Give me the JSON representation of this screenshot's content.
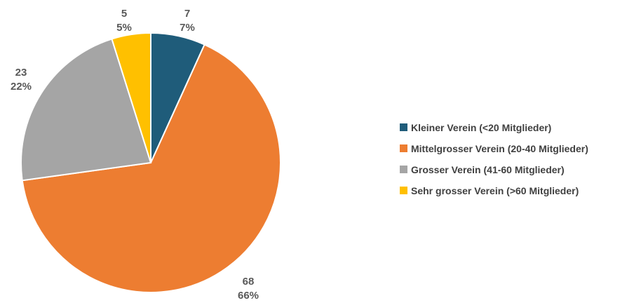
{
  "chart_data": {
    "type": "pie",
    "title": "",
    "start_angle_deg": 0,
    "direction": "clockwise",
    "legend_position": "right",
    "slices": [
      {
        "label": "Kleiner Verein (<20 Mitglieder)",
        "value": 7,
        "percent_label": "7%",
        "color": "#1F5C7A"
      },
      {
        "label": "Mittelgrosser Verein (20-40 Mitglieder)",
        "value": 68,
        "percent_label": "66%",
        "color": "#ED7D31"
      },
      {
        "label": "Grosser Verein (41-60 Mitglieder)",
        "value": 23,
        "percent_label": "22%",
        "color": "#A5A5A5"
      },
      {
        "label": "Sehr grosser Verein (>60 Mitglieder)",
        "value": 5,
        "percent_label": "5%",
        "color": "#FFC000"
      }
    ]
  }
}
